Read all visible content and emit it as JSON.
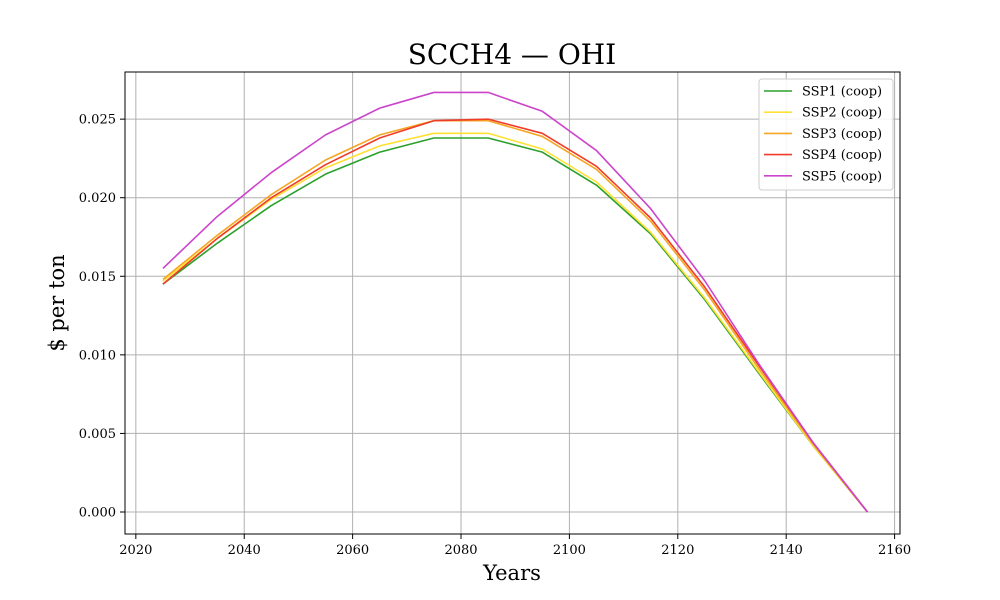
{
  "chart_data": {
    "type": "line",
    "title": "SCCH4 — OHI",
    "xlabel": "Years",
    "ylabel": "$ per ton",
    "xlim": [
      2018,
      2161
    ],
    "ylim": [
      -0.0014,
      0.028
    ],
    "xticks": [
      2020,
      2040,
      2060,
      2080,
      2100,
      2120,
      2140,
      2160
    ],
    "xtick_labels": [
      "2020",
      "2040",
      "2060",
      "2080",
      "2100",
      "2120",
      "2140",
      "2160"
    ],
    "yticks": [
      0.0,
      0.005,
      0.01,
      0.015,
      0.02,
      0.025
    ],
    "ytick_labels": [
      "0.000",
      "0.005",
      "0.010",
      "0.015",
      "0.020",
      "0.025"
    ],
    "grid": true,
    "legend_position": "top-right",
    "x": [
      2025,
      2035,
      2045,
      2055,
      2065,
      2075,
      2085,
      2095,
      2105,
      2115,
      2125,
      2135,
      2145,
      2155
    ],
    "series": [
      {
        "name": "SSP1 (coop)",
        "color": "#2ca02c",
        "values": [
          0.0145,
          0.0171,
          0.0195,
          0.0215,
          0.0229,
          0.0238,
          0.0238,
          0.0229,
          0.0208,
          0.0177,
          0.0135,
          0.0088,
          0.0042,
          0.0
        ]
      },
      {
        "name": "SSP2 (coop)",
        "color": "#ffe033",
        "values": [
          0.0147,
          0.0174,
          0.0199,
          0.0219,
          0.0233,
          0.0241,
          0.0241,
          0.0231,
          0.021,
          0.0178,
          0.0136,
          0.0089,
          0.0042,
          0.0
        ]
      },
      {
        "name": "SSP3 (coop)",
        "color": "#f5a623",
        "values": [
          0.0148,
          0.0176,
          0.0202,
          0.0224,
          0.024,
          0.0249,
          0.0249,
          0.0239,
          0.0218,
          0.0185,
          0.0141,
          0.0091,
          0.0043,
          0.0
        ]
      },
      {
        "name": "SSP4 (coop)",
        "color": "#f03c28",
        "values": [
          0.0145,
          0.0174,
          0.02,
          0.0221,
          0.0238,
          0.0249,
          0.025,
          0.0241,
          0.022,
          0.0187,
          0.0143,
          0.0093,
          0.0044,
          0.0
        ]
      },
      {
        "name": "SSP5 (coop)",
        "color": "#cc44cc",
        "values": [
          0.0155,
          0.0188,
          0.0216,
          0.024,
          0.0257,
          0.0267,
          0.0267,
          0.0255,
          0.023,
          0.0193,
          0.0147,
          0.0094,
          0.0044,
          0.0
        ]
      }
    ]
  }
}
